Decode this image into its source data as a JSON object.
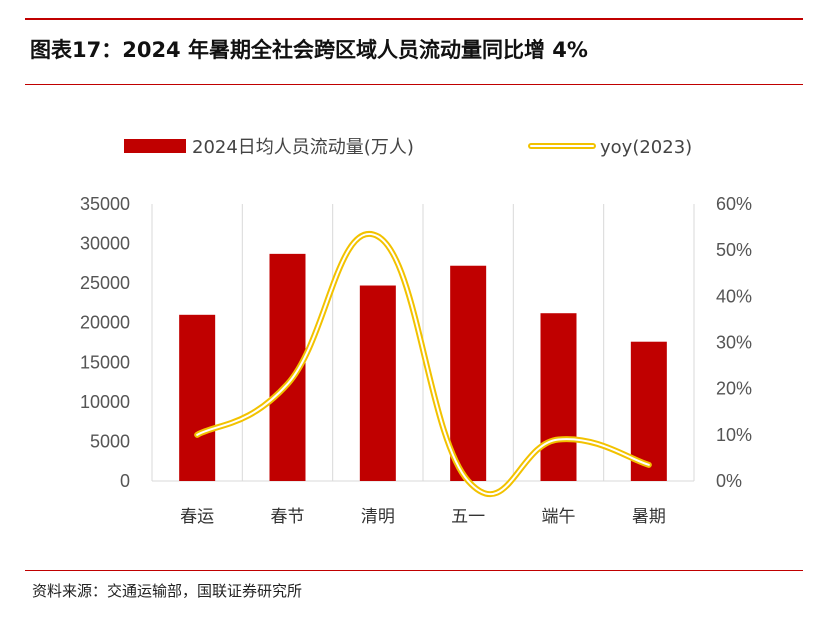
{
  "header": {
    "title": "图表17：2024 年暑期全社会跨区域人员流动量同比增 4%"
  },
  "footer": {
    "source": "资料来源：交通运输部，国联证券研究所"
  },
  "colors": {
    "bar": "#c00000",
    "line_outer": "#f2c200",
    "line_inner": "#ffffff",
    "grid": "#d9d9d9",
    "rule": "#c00000"
  },
  "chart_data": {
    "type": "bar",
    "categories": [
      "春运",
      "春节",
      "清明",
      "五一",
      "端午",
      "暑期"
    ],
    "series": [
      {
        "name": "2024日均人员流动量(万人)",
        "type": "bar",
        "axis": "left",
        "values": [
          21000,
          28700,
          24700,
          27200,
          21200,
          17600
        ]
      },
      {
        "name": "yoy(2023)",
        "type": "line",
        "axis": "right",
        "smooth": true,
        "values": [
          0.1,
          0.21,
          0.53,
          0.0,
          0.09,
          0.035
        ]
      }
    ],
    "y_left": {
      "min": 0,
      "max": 35000,
      "step": 5000,
      "ticks": [
        "0",
        "5000",
        "10000",
        "15000",
        "20000",
        "25000",
        "30000",
        "35000"
      ]
    },
    "y_right": {
      "min": 0,
      "max": 0.6,
      "step": 0.1,
      "ticks": [
        "0%",
        "10%",
        "20%",
        "30%",
        "40%",
        "50%",
        "60%"
      ]
    },
    "grid": "vertical",
    "legend": "top"
  }
}
